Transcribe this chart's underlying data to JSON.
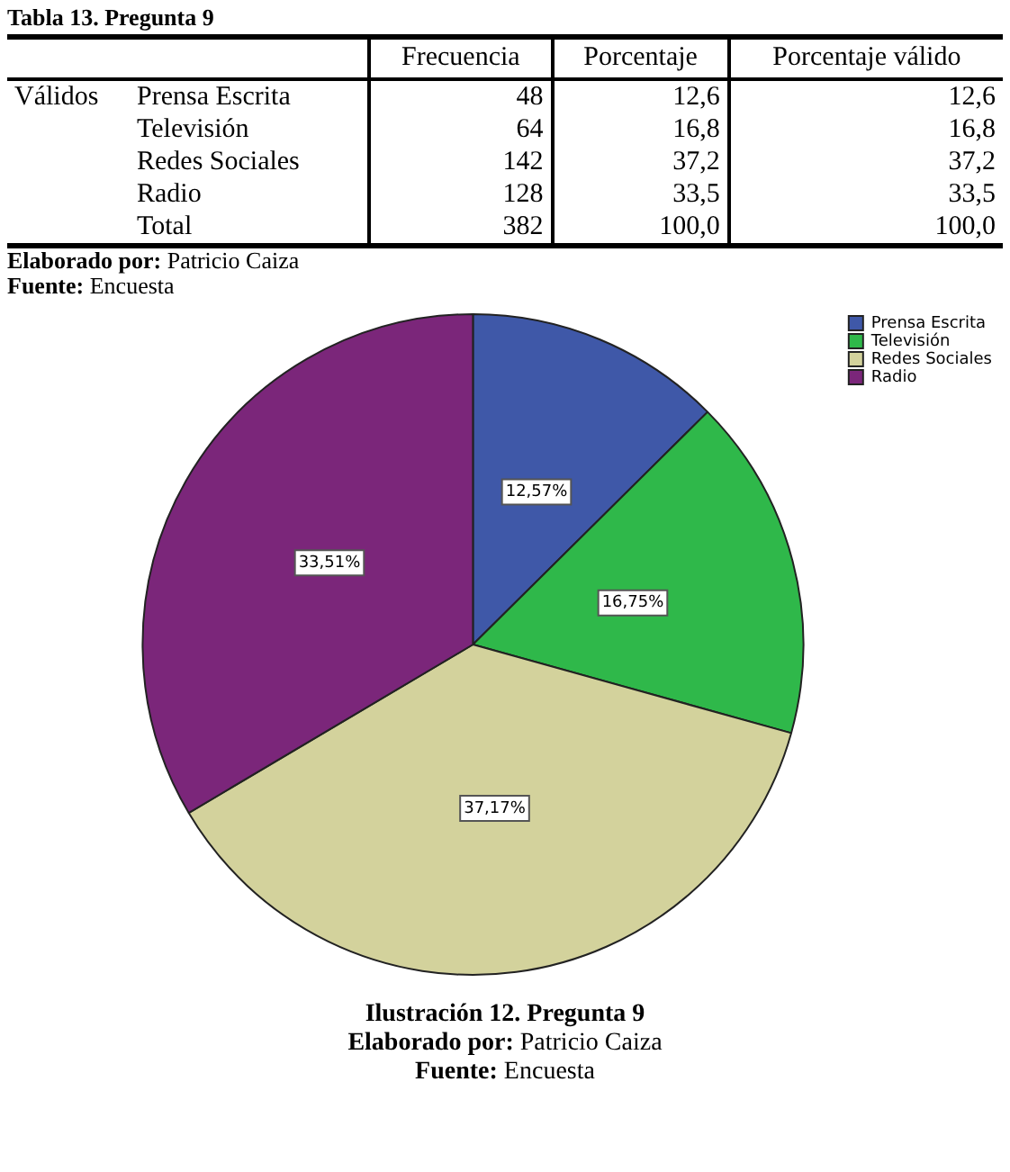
{
  "chart_data": [
    {
      "type": "other",
      "title": "Tabla 13. Pregunta 9",
      "categories": [
        "Frecuencia",
        "Porcentaje",
        "Porcentaje válido"
      ],
      "series": [
        {
          "name": "Prensa Escrita",
          "values": [
            48,
            12.6,
            12.6
          ],
          "value_labels": [
            "48",
            "12,6",
            "12,6"
          ]
        },
        {
          "name": "Televisión",
          "values": [
            64,
            16.8,
            16.8
          ],
          "value_labels": [
            "64",
            "16,8",
            "16,8"
          ]
        },
        {
          "name": "Redes Sociales",
          "values": [
            142,
            37.2,
            37.2
          ],
          "value_labels": [
            "142",
            "37,2",
            "37,2"
          ]
        },
        {
          "name": "Radio",
          "values": [
            128,
            33.5,
            33.5
          ],
          "value_labels": [
            "128",
            "33,5",
            "33,5"
          ]
        },
        {
          "name": "Total",
          "values": [
            382,
            100.0,
            100.0
          ],
          "value_labels": [
            "382",
            "100,0",
            "100,0"
          ]
        }
      ],
      "annotations": [
        "Válidos",
        "Elaborado por: Patricio Caiza",
        "Fuente: Encuesta"
      ]
    },
    {
      "type": "pie",
      "title": "Ilustración 12. Pregunta 9",
      "categories": [
        "Prensa Escrita",
        "Televisión",
        "Redes Sociales",
        "Radio"
      ],
      "values": [
        12.57,
        16.75,
        37.17,
        33.51
      ],
      "value_labels": [
        "12,57%",
        "16,75%",
        "37,17%",
        "33,51%"
      ],
      "colors": [
        "#3f58a8",
        "#2fb84a",
        "#d3d29c",
        "#7b267a"
      ],
      "legend": "top right",
      "annotations": [
        "Elaborado por: Patricio Caiza",
        "Fuente: Encuesta"
      ]
    }
  ]
}
